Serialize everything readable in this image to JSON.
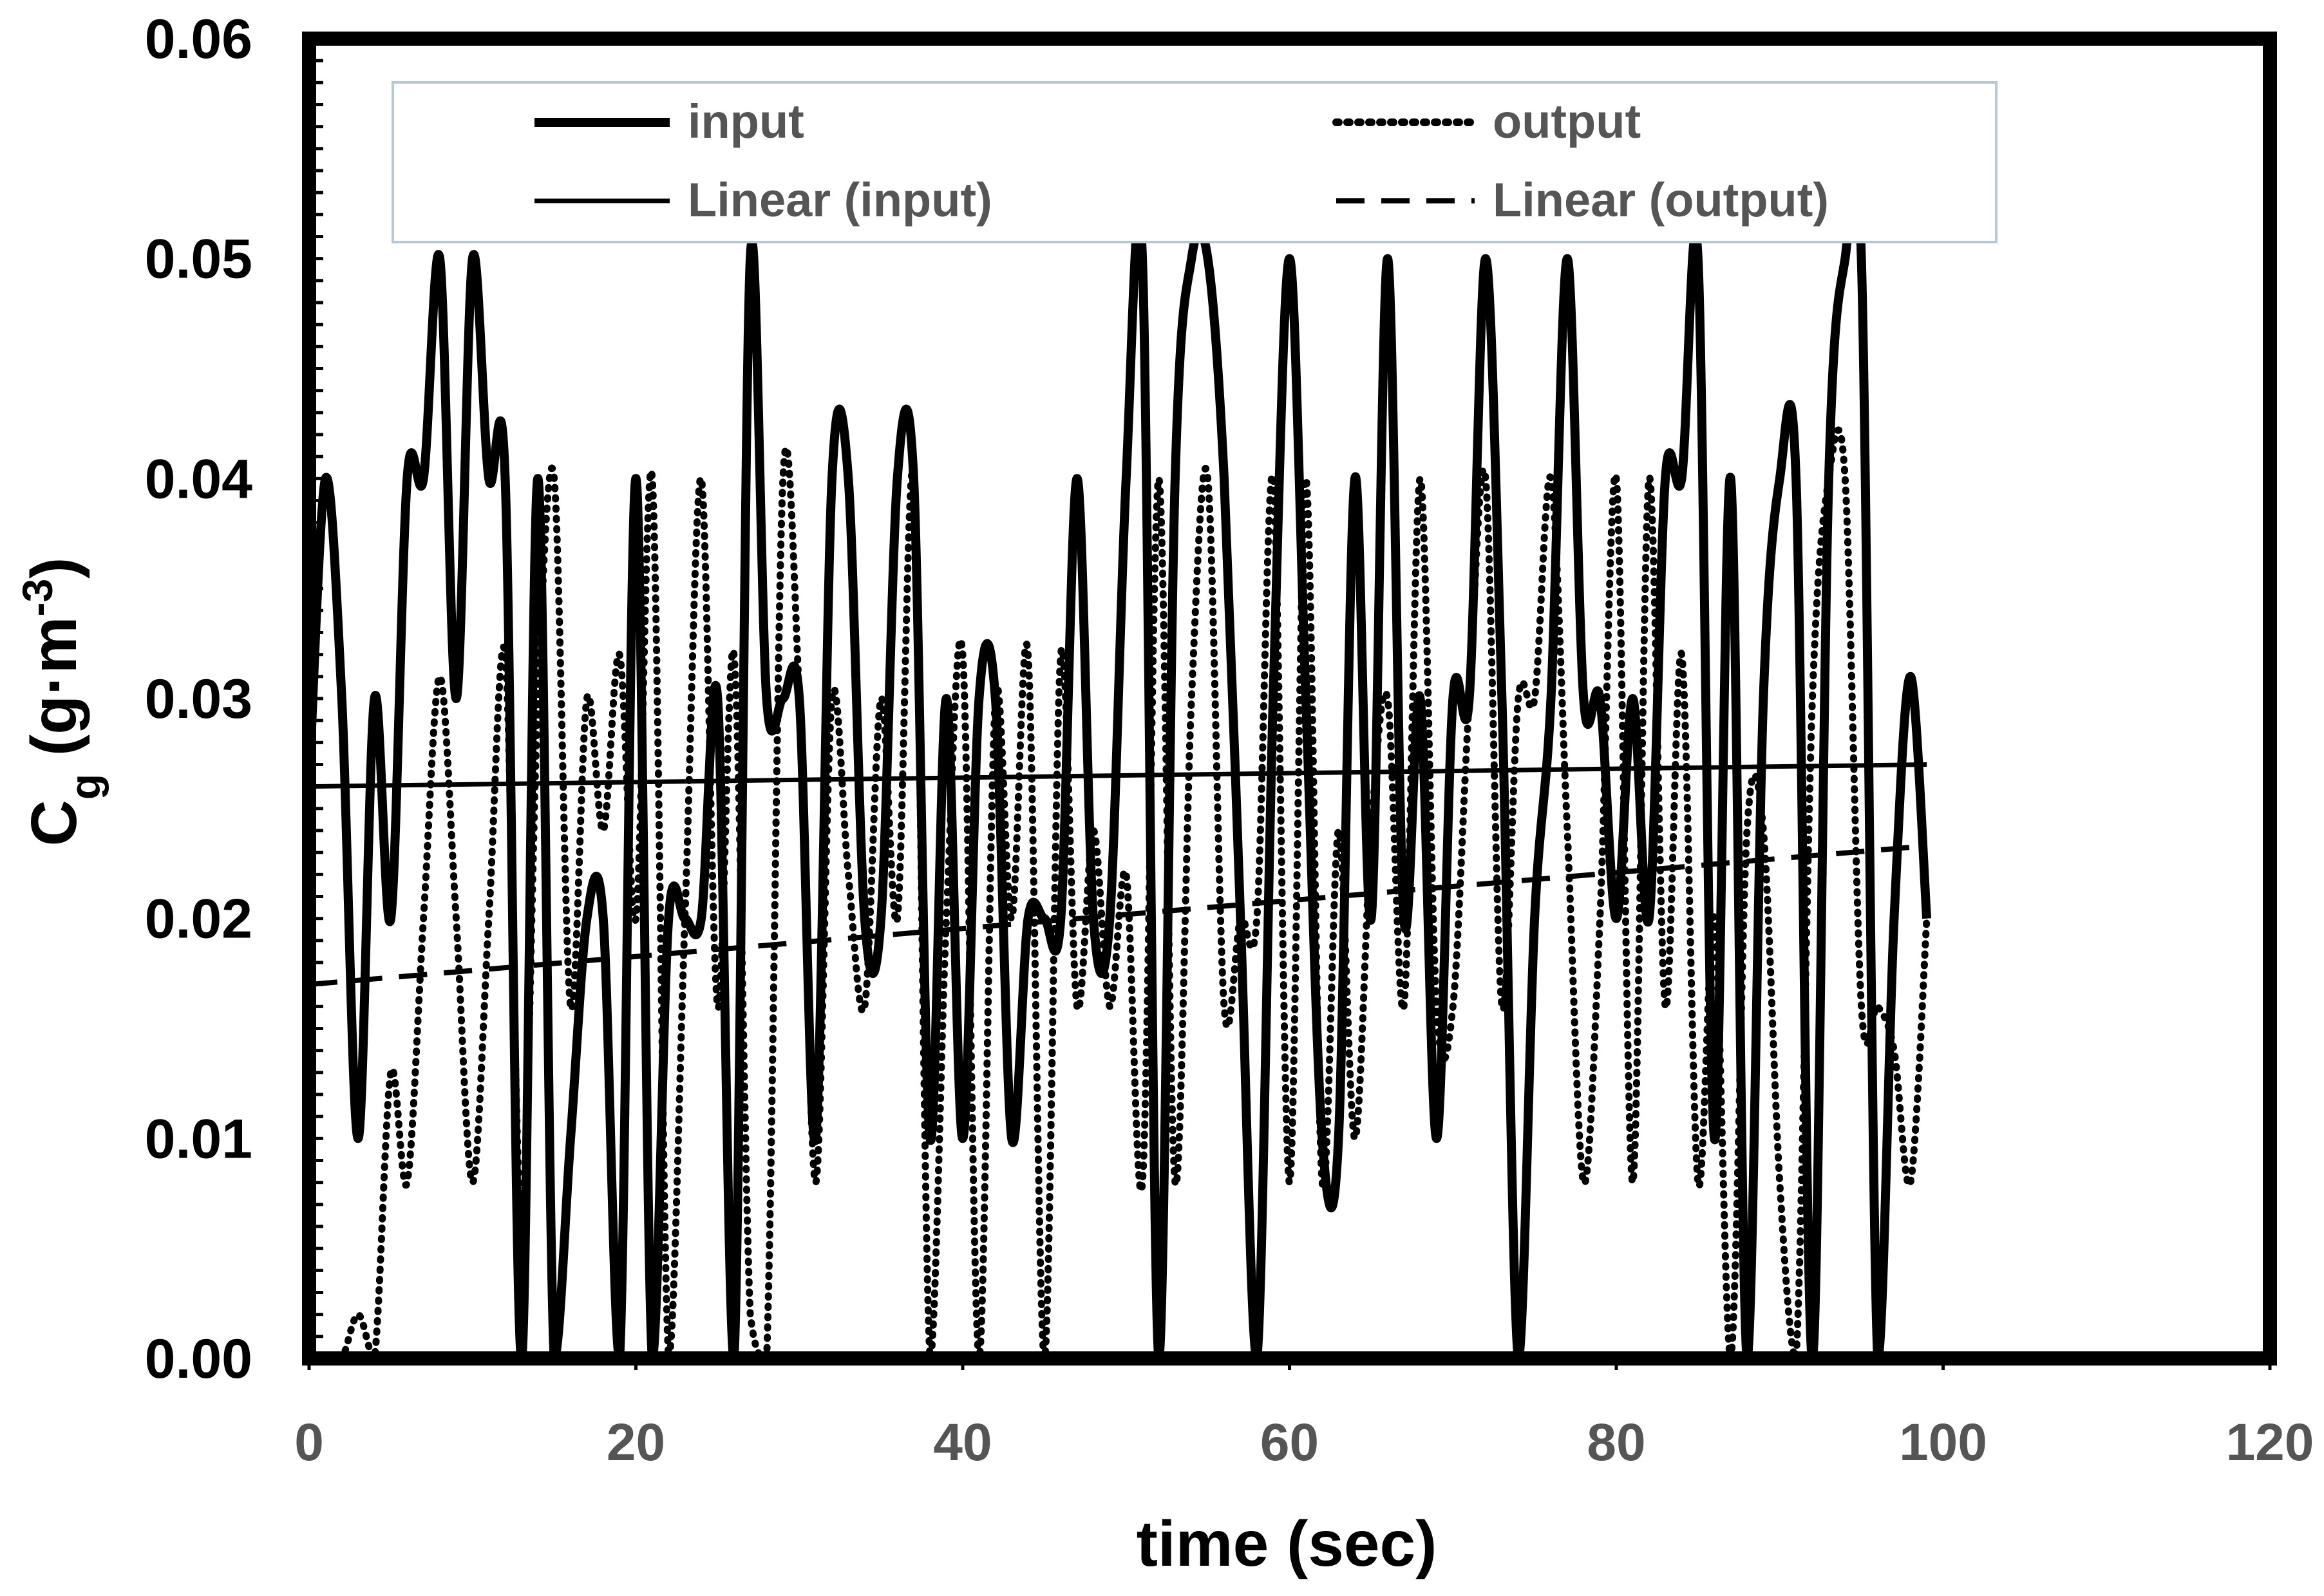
{
  "chart_data": {
    "type": "line",
    "title": "",
    "xlabel": "time (sec)",
    "ylabel": {
      "base": "C",
      "sub": "g",
      "unit_open": " (g·m",
      "sup": "-3",
      "unit_close": ")"
    },
    "xlim": [
      0,
      120
    ],
    "ylim": [
      0,
      0.06
    ],
    "xticks": [
      0,
      20,
      40,
      60,
      80,
      100,
      120
    ],
    "xtick_labels": [
      "0",
      "20",
      "40",
      "60",
      "80",
      "100",
      "120"
    ],
    "yticks": [
      0,
      0.01,
      0.02,
      0.03,
      0.04,
      0.05,
      0.06
    ],
    "ytick_labels": [
      "0.00",
      "0.01",
      "0.02",
      "0.03",
      "0.04",
      "0.05",
      "0.06"
    ],
    "grid": false,
    "legend_position": "top",
    "legend": [
      "input",
      "output",
      "Linear (input)",
      "Linear (output)"
    ],
    "series": [
      {
        "name": "input",
        "style": "solid-thick",
        "x": [
          0,
          1,
          2,
          3,
          4,
          5,
          6,
          7,
          8,
          9,
          10,
          11,
          12,
          13,
          14,
          15,
          16,
          17,
          18,
          19,
          20,
          21,
          22,
          23,
          24,
          25,
          26,
          27,
          28,
          29,
          30,
          31,
          32,
          33,
          34,
          35,
          36,
          37,
          38,
          39,
          40,
          41,
          42,
          43,
          44,
          45,
          46,
          47,
          48,
          49,
          50,
          51,
          52,
          53,
          54,
          55,
          56,
          57,
          58,
          59,
          60,
          61,
          62,
          63,
          64,
          65,
          66,
          67,
          68,
          69,
          70,
          71,
          72,
          73,
          74,
          75,
          76,
          77,
          78,
          79,
          80,
          81,
          82,
          83,
          84,
          85,
          86,
          87,
          88,
          89,
          90,
          91,
          92,
          93,
          94,
          95,
          96,
          97,
          98,
          99
        ],
        "values": [
          0.026,
          0.04,
          0.03,
          0.01,
          0.03,
          0.02,
          0.04,
          0.04,
          0.05,
          0.03,
          0.05,
          0.04,
          0.04,
          0.0,
          0.04,
          0.0,
          0.01,
          0.02,
          0.02,
          0.0,
          0.04,
          0.0,
          0.02,
          0.02,
          0.02,
          0.03,
          0.0,
          0.05,
          0.03,
          0.03,
          0.03,
          0.01,
          0.04,
          0.04,
          0.02,
          0.02,
          0.04,
          0.04,
          0.01,
          0.03,
          0.01,
          0.03,
          0.03,
          0.01,
          0.02,
          0.02,
          0.02,
          0.04,
          0.02,
          0.02,
          0.04,
          0.05,
          0.0,
          0.04,
          0.05,
          0.05,
          0.04,
          0.02,
          0.0,
          0.03,
          0.05,
          0.03,
          0.01,
          0.01,
          0.04,
          0.02,
          0.05,
          0.02,
          0.03,
          0.01,
          0.03,
          0.03,
          0.05,
          0.03,
          0.0,
          0.02,
          0.03,
          0.05,
          0.03,
          0.03,
          0.02,
          0.03,
          0.02,
          0.04,
          0.04,
          0.05,
          0.01,
          0.04,
          0.0,
          0.03,
          0.04,
          0.04,
          0.0,
          0.04,
          0.05,
          0.05,
          0.0,
          0.02,
          0.031,
          0.02
        ]
      },
      {
        "name": "output",
        "style": "dotted",
        "x": [
          0,
          1,
          2,
          3,
          4,
          5,
          6,
          7,
          8,
          9,
          10,
          11,
          12,
          13,
          14,
          15,
          16,
          17,
          18,
          19,
          20,
          21,
          22,
          23,
          24,
          25,
          26,
          27,
          28,
          29,
          30,
          31,
          32,
          33,
          34,
          35,
          36,
          37,
          38,
          39,
          40,
          41,
          42,
          43,
          44,
          45,
          46,
          47,
          48,
          49,
          50,
          51,
          52,
          53,
          54,
          55,
          56,
          57,
          58,
          59,
          60,
          61,
          62,
          63,
          64,
          65,
          66,
          67,
          68,
          69,
          70,
          71,
          72,
          73,
          74,
          75,
          76,
          77,
          78,
          79,
          80,
          81,
          82,
          83,
          84,
          85,
          86,
          87,
          88,
          89,
          90,
          91,
          92,
          93,
          94,
          95,
          96,
          97,
          98,
          99
        ],
        "values": [
          0.0,
          0.0,
          0.0,
          0.002,
          0.0,
          0.013,
          0.008,
          0.02,
          0.031,
          0.02,
          0.008,
          0.02,
          0.032,
          0.006,
          0.03,
          0.04,
          0.016,
          0.03,
          0.024,
          0.032,
          0.02,
          0.04,
          0.0,
          0.02,
          0.04,
          0.016,
          0.032,
          0.002,
          0.0,
          0.04,
          0.03,
          0.008,
          0.03,
          0.022,
          0.016,
          0.03,
          0.02,
          0.04,
          0.0,
          0.02,
          0.032,
          0.0,
          0.03,
          0.02,
          0.032,
          0.0,
          0.032,
          0.016,
          0.024,
          0.016,
          0.022,
          0.008,
          0.04,
          0.008,
          0.03,
          0.04,
          0.016,
          0.02,
          0.02,
          0.04,
          0.008,
          0.04,
          0.008,
          0.024,
          0.01,
          0.024,
          0.03,
          0.016,
          0.04,
          0.016,
          0.016,
          0.03,
          0.04,
          0.016,
          0.03,
          0.03,
          0.04,
          0.024,
          0.008,
          0.02,
          0.04,
          0.008,
          0.04,
          0.016,
          0.032,
          0.008,
          0.02,
          0.0,
          0.024,
          0.024,
          0.008,
          0.0,
          0.03,
          0.04,
          0.04,
          0.016,
          0.016,
          0.014,
          0.008,
          0.02
        ]
      },
      {
        "name": "Linear (input)",
        "style": "solid-thin",
        "x": [
          0,
          99
        ],
        "values": [
          0.026,
          0.027
        ]
      },
      {
        "name": "Linear (output)",
        "style": "dashed",
        "x": [
          0,
          99
        ],
        "values": [
          0.017,
          0.0233
        ]
      }
    ]
  }
}
